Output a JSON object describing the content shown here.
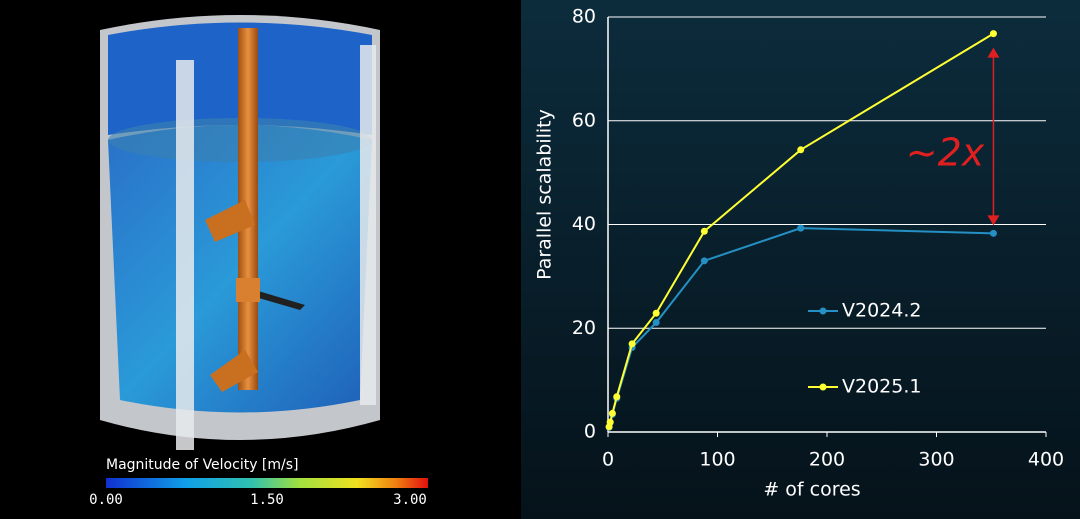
{
  "render": {
    "colorbar_title": "Magnitude of Velocity [m/s]",
    "colorbar_ticks": [
      "0.00",
      "1.50",
      "3.00"
    ]
  },
  "chart_data": {
    "type": "line",
    "x_label": "# of cores",
    "y_label": "Parallel scalability",
    "annotation": "~2x",
    "xlim": [
      0,
      400
    ],
    "xticks": [
      0,
      100,
      200,
      300,
      400
    ],
    "ylim": [
      0,
      80
    ],
    "yticks": [
      0,
      20,
      40,
      60,
      80
    ],
    "grid": true,
    "x": [
      1,
      2,
      4,
      8,
      22,
      44,
      88,
      176,
      352
    ],
    "series": [
      {
        "name": "V2024.2",
        "color": "#2490c4",
        "values": [
          0.9,
          1.8,
          3.4,
          6.5,
          16.3,
          21.1,
          33,
          39.3,
          38.3
        ]
      },
      {
        "name": "V2025.1",
        "color": "#ffff33",
        "values": [
          1,
          1.9,
          3.6,
          6.8,
          17,
          22.9,
          38.7,
          54.4,
          76.8
        ]
      }
    ]
  }
}
